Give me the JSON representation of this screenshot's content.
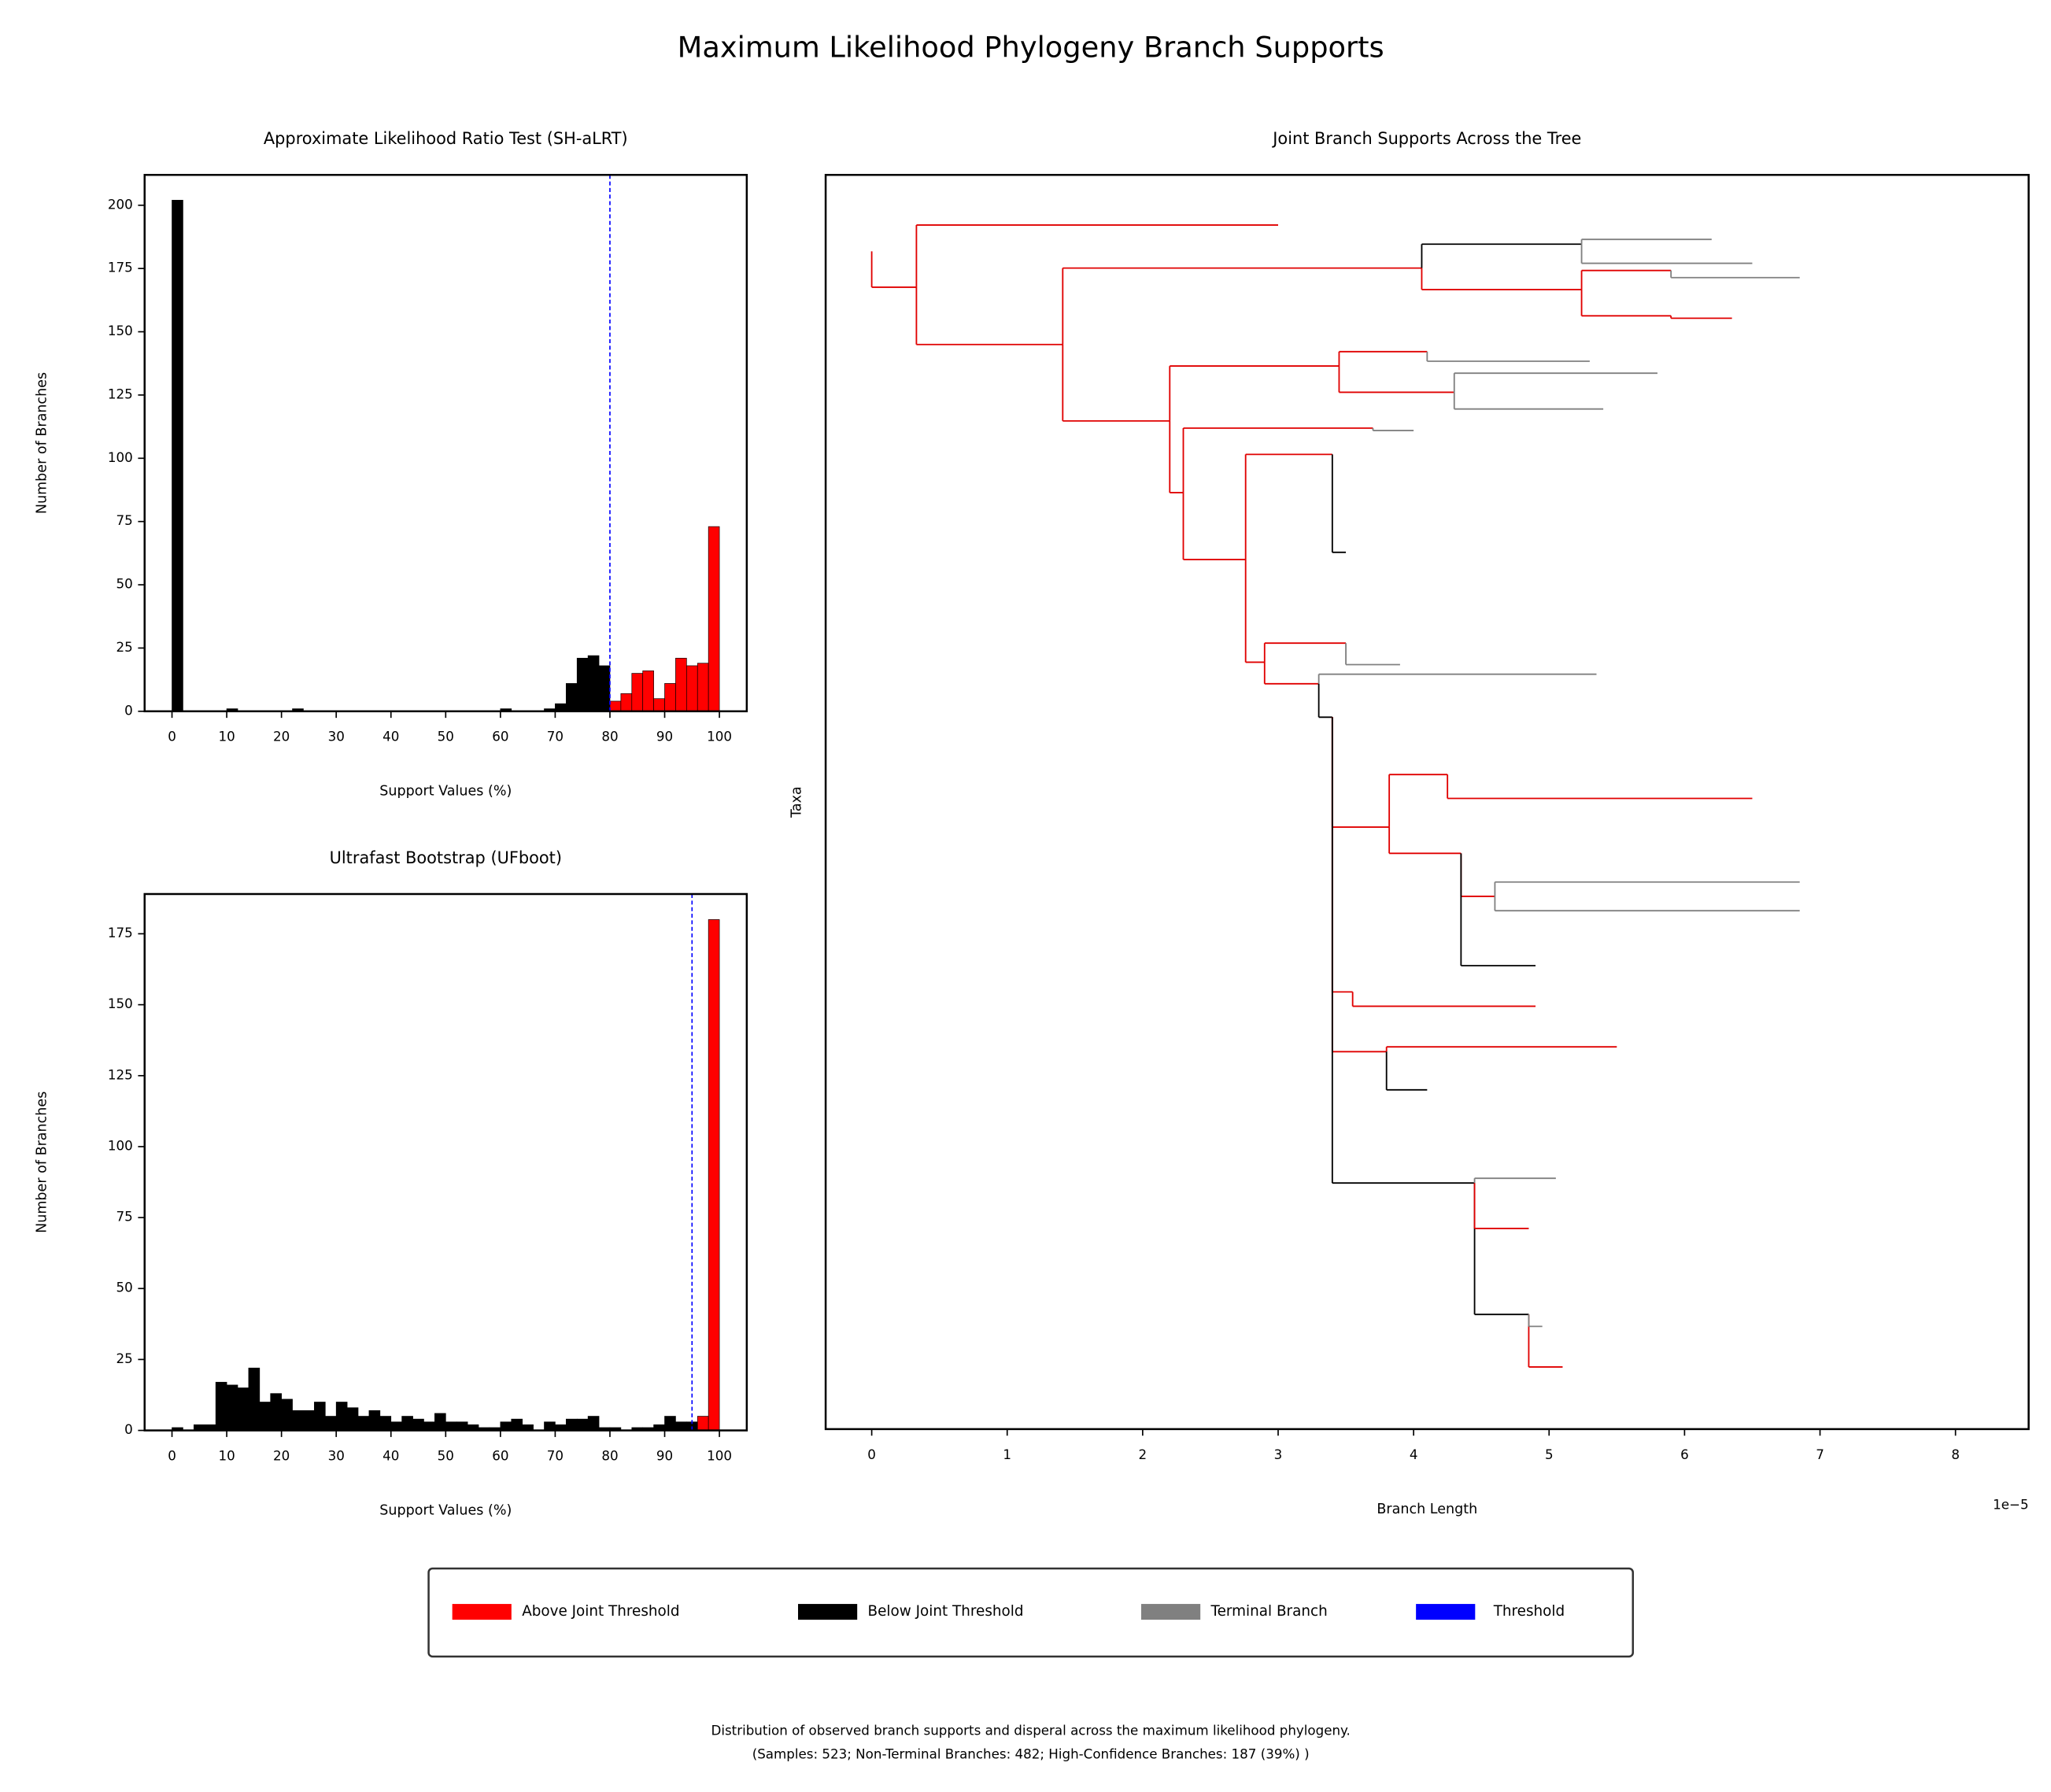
{
  "title": "Maximum Likelihood Phylogeny Branch Supports",
  "legend": [
    {
      "name": "Above Joint Threshold",
      "color": "#ff0000"
    },
    {
      "name": "Below Joint Threshold",
      "color": "#000000"
    },
    {
      "name": "Terminal Branch",
      "color": "#808080"
    },
    {
      "name": "Threshold",
      "color": "#0000ff"
    }
  ],
  "caption": [
    "Distribution of observed branch supports and disperal across the maximum likelihood phylogeny.",
    "(Samples: 523; Non-Terminal Branches: 482; High-Confidence Branches: 187 (39%) )"
  ],
  "chart_data": [
    {
      "type": "histogram",
      "title": "Approximate Likelihood Ratio Test (SH-aLRT)",
      "x_label": "Support Values (%)",
      "y_label": "Number of Branches",
      "bins": [
        0,
        2,
        4,
        6,
        8,
        10,
        12,
        14,
        16,
        18,
        20,
        22,
        24,
        26,
        28,
        30,
        32,
        34,
        36,
        38,
        40,
        42,
        44,
        46,
        48,
        50,
        52,
        54,
        56,
        58,
        60,
        62,
        64,
        66,
        68,
        70,
        72,
        74,
        76,
        78,
        80,
        82,
        84,
        86,
        88,
        90,
        92,
        94,
        96,
        98,
        100
      ],
      "values": [
        202,
        0,
        0,
        0,
        0,
        1,
        0,
        0,
        0,
        0,
        0,
        1,
        0,
        0,
        0,
        0,
        0,
        0,
        0,
        0,
        0,
        0,
        0,
        0,
        0,
        0,
        0,
        0,
        0,
        0,
        1,
        0,
        0,
        0,
        1,
        3,
        11,
        21,
        22,
        18,
        4,
        7,
        15,
        16,
        5,
        11,
        21,
        18,
        19,
        73
      ],
      "threshold": 80,
      "above_color": "#ff0000",
      "below_color": "#000000",
      "threshold_color": "#0000ff",
      "xlim": [
        -5,
        105
      ],
      "xticks": [
        0,
        10,
        20,
        30,
        40,
        50,
        60,
        70,
        80,
        90,
        100
      ],
      "ylim": [
        0,
        212
      ],
      "yticks": [
        0,
        25,
        50,
        75,
        100,
        125,
        150,
        175,
        200
      ]
    },
    {
      "type": "histogram",
      "title": "Ultrafast Bootstrap (UFboot)",
      "x_label": "Support Values (%)",
      "y_label": "Number of Branches",
      "bins": [
        0,
        2,
        4,
        6,
        8,
        10,
        12,
        14,
        16,
        18,
        20,
        22,
        24,
        26,
        28,
        30,
        32,
        34,
        36,
        38,
        40,
        42,
        44,
        46,
        48,
        50,
        52,
        54,
        56,
        58,
        60,
        62,
        64,
        66,
        68,
        70,
        72,
        74,
        76,
        78,
        80,
        82,
        84,
        86,
        88,
        90,
        92,
        94,
        96,
        98,
        100
      ],
      "values": [
        1,
        0,
        2,
        2,
        17,
        16,
        15,
        22,
        10,
        13,
        11,
        7,
        7,
        10,
        5,
        10,
        8,
        5,
        7,
        5,
        3,
        5,
        4,
        3,
        6,
        3,
        3,
        2,
        1,
        1,
        3,
        4,
        2,
        0,
        3,
        2,
        4,
        4,
        5,
        1,
        1,
        0,
        1,
        1,
        2,
        5,
        3,
        3,
        5,
        180
      ],
      "threshold": 95,
      "above_color": "#ff0000",
      "below_color": "#000000",
      "threshold_color": "#0000ff",
      "xlim": [
        -5,
        105
      ],
      "xticks": [
        0,
        10,
        20,
        30,
        40,
        50,
        60,
        70,
        80,
        90,
        100
      ],
      "ylim": [
        0,
        189
      ],
      "yticks": [
        0,
        25,
        50,
        75,
        100,
        125,
        150,
        175
      ]
    },
    {
      "type": "tree",
      "title": "Joint Branch Supports Across the Tree",
      "x_label": "Branch Length",
      "y_label": "Taxa",
      "x_offset_label": "1e−5",
      "xlim": [
        -0.34,
        8.54
      ],
      "xticks": [
        0,
        1,
        2,
        3,
        4,
        5,
        6,
        7,
        8
      ],
      "ylim": [
        525,
        0
      ],
      "nodes": [
        {
          "parent": null,
          "x": 0,
          "y": 32,
          "color": "#e00000"
        },
        {
          "parent": 0,
          "x": 0.33,
          "y": 47,
          "color": "#e00000"
        },
        {
          "parent": 1,
          "x": 3.0,
          "y": 21,
          "color": "#e00000"
        },
        {
          "parent": 1,
          "x": 1.41,
          "y": 71,
          "color": "#e00000"
        },
        {
          "parent": 3,
          "x": 4.06,
          "y": 39,
          "color": "#e00000"
        },
        {
          "parent": 4,
          "x": 5.24,
          "y": 29,
          "color": "#000000"
        },
        {
          "parent": 5,
          "x": 6.2,
          "y": 27,
          "color": "#808080"
        },
        {
          "parent": 5,
          "x": 6.5,
          "y": 37,
          "color": "#808080"
        },
        {
          "parent": 4,
          "x": 5.24,
          "y": 48,
          "color": "#e00000"
        },
        {
          "parent": 8,
          "x": 5.9,
          "y": 40,
          "color": "#e00000"
        },
        {
          "parent": 9,
          "x": 6.85,
          "y": 43,
          "color": "#808080"
        },
        {
          "parent": 8,
          "x": 5.9,
          "y": 59,
          "color": "#e00000"
        },
        {
          "parent": 11,
          "x": 6.35,
          "y": 60,
          "color": "#e00000"
        },
        {
          "parent": 3,
          "x": 2.2,
          "y": 103,
          "color": "#e00000"
        },
        {
          "parent": 13,
          "x": 3.45,
          "y": 80,
          "color": "#e00000"
        },
        {
          "parent": 14,
          "x": 4.1,
          "y": 74,
          "color": "#e00000"
        },
        {
          "parent": 15,
          "x": 5.3,
          "y": 78,
          "color": "#808080"
        },
        {
          "parent": 14,
          "x": 4.3,
          "y": 91,
          "color": "#e00000"
        },
        {
          "parent": 17,
          "x": 5.4,
          "y": 98,
          "color": "#808080"
        },
        {
          "parent": 17,
          "x": 5.8,
          "y": 83,
          "color": "#808080"
        },
        {
          "parent": 13,
          "x": 2.3,
          "y": 133,
          "color": "#e00000"
        },
        {
          "parent": 20,
          "x": 3.7,
          "y": 106,
          "color": "#e00000"
        },
        {
          "parent": 21,
          "x": 4.0,
          "y": 107,
          "color": "#808080"
        },
        {
          "parent": 20,
          "x": 2.76,
          "y": 161,
          "color": "#e00000"
        },
        {
          "parent": 23,
          "x": 3.4,
          "y": 117,
          "color": "#e00000"
        },
        {
          "parent": 24,
          "x": 3.5,
          "y": 158,
          "color": "#000000"
        },
        {
          "parent": 23,
          "x": 2.9,
          "y": 204,
          "color": "#e00000"
        },
        {
          "parent": 26,
          "x": 3.5,
          "y": 196,
          "color": "#e00000"
        },
        {
          "parent": 27,
          "x": 3.9,
          "y": 205,
          "color": "#808080"
        },
        {
          "parent": 26,
          "x": 3.3,
          "y": 213,
          "color": "#e00000"
        },
        {
          "parent": 29,
          "x": 5.35,
          "y": 209,
          "color": "#808080"
        },
        {
          "parent": 29,
          "x": 3.4,
          "y": 227,
          "color": "#000000"
        },
        {
          "parent": 31,
          "x": 3.82,
          "y": 273,
          "color": "#e00000"
        },
        {
          "parent": 32,
          "x": 4.25,
          "y": 251,
          "color": "#e00000"
        },
        {
          "parent": 33,
          "x": 6.5,
          "y": 261,
          "color": "#e00000"
        },
        {
          "parent": 32,
          "x": 4.35,
          "y": 284,
          "color": "#e00000"
        },
        {
          "parent": 35,
          "x": 4.6,
          "y": 302,
          "color": "#e00000"
        },
        {
          "parent": 36,
          "x": 6.85,
          "y": 308,
          "color": "#808080"
        },
        {
          "parent": 36,
          "x": 6.85,
          "y": 296,
          "color": "#808080"
        },
        {
          "parent": 35,
          "x": 4.9,
          "y": 331,
          "color": "#000000"
        },
        {
          "parent": 31,
          "x": 3.55,
          "y": 342,
          "color": "#e00000"
        },
        {
          "parent": 40,
          "x": 4.9,
          "y": 348,
          "color": "#e00000"
        },
        {
          "parent": 31,
          "x": 3.8,
          "y": 367,
          "color": "#e00000"
        },
        {
          "parent": 42,
          "x": 5.5,
          "y": 365,
          "color": "#e00000"
        },
        {
          "parent": 42,
          "x": 4.1,
          "y": 383,
          "color": "#000000"
        },
        {
          "parent": 31,
          "x": 4.45,
          "y": 422,
          "color": "#000000"
        },
        {
          "parent": 45,
          "x": 4.85,
          "y": 477,
          "color": "#000000"
        },
        {
          "parent": 46,
          "x": 5.1,
          "y": 499,
          "color": "#e00000"
        },
        {
          "parent": 46,
          "x": 4.95,
          "y": 482,
          "color": "#808080"
        },
        {
          "parent": 45,
          "x": 5.05,
          "y": 420,
          "color": "#808080"
        },
        {
          "parent": 45,
          "x": 4.85,
          "y": 441,
          "color": "#e00000"
        }
      ]
    }
  ]
}
